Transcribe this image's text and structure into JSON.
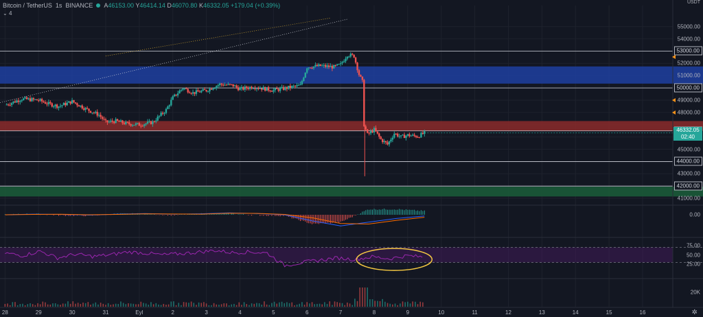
{
  "header": {
    "symbol": "Bitcoin / TetherUS",
    "interval": "1s",
    "exchange": "BINANCE",
    "o_label": "A",
    "o_value": "46153.00",
    "h_label": "Y",
    "h_value": "46414.14",
    "l_label": "D",
    "l_value": "46070.80",
    "c_label": "K",
    "c_value": "46332.05",
    "change": "+179.04 (+0.39%)",
    "indicators_count": "4"
  },
  "axis_unit": "USDT",
  "current_price": {
    "value": "46332.05",
    "countdown": "02:40"
  },
  "colors": {
    "background": "#131722",
    "up": "#26a69a",
    "down": "#ef5350",
    "blue_zone": "#1e3fa0",
    "red_zone": "#8b2a2a",
    "green_zone": "#1b5e3a",
    "rsi_line": "#9c27b0",
    "highlight": "#f5c842"
  },
  "chart_data": [
    {
      "type": "candlestick",
      "title": "Bitcoin / TetherUS",
      "x_ticks": [
        "28",
        "29",
        "30",
        "31",
        "Eyl",
        "2",
        "3",
        "4",
        "5",
        "6",
        "7",
        "8",
        "9",
        "10",
        "11",
        "12",
        "13",
        "14",
        "15",
        "16"
      ],
      "y_ticks": [
        "55000.00",
        "54000.00",
        "52000.00",
        "51000.00",
        "49000.00",
        "48000.00",
        "45000.00",
        "43000.00",
        "41000.00"
      ],
      "y_range": [
        40500,
        55600
      ],
      "labeled_levels": [
        "53000.00",
        "50000.00",
        "46500.00",
        "44000.00",
        "42000.00"
      ],
      "zones": [
        {
          "name": "blue",
          "from": 50350,
          "to": 51750
        },
        {
          "name": "red",
          "from": 46500,
          "to": 47300
        },
        {
          "name": "green",
          "from": 41150,
          "to": 41950
        }
      ],
      "close_path": [
        {
          "day": 28.0,
          "close": 48600
        },
        {
          "day": 28.5,
          "close": 49100
        },
        {
          "day": 29.0,
          "close": 49000
        },
        {
          "day": 29.3,
          "close": 48700
        },
        {
          "day": 29.6,
          "close": 48500
        },
        {
          "day": 30.0,
          "close": 48900
        },
        {
          "day": 30.4,
          "close": 48300
        },
        {
          "day": 30.8,
          "close": 47800
        },
        {
          "day": 31.0,
          "close": 47200
        },
        {
          "day": 31.3,
          "close": 47300
        },
        {
          "day": 31.6,
          "close": 47100
        },
        {
          "day": 32.0,
          "close": 47000
        },
        {
          "day": 32.4,
          "close": 47200
        },
        {
          "day": 32.8,
          "close": 48200
        },
        {
          "day": 33.0,
          "close": 49200
        },
        {
          "day": 33.3,
          "close": 50000
        },
        {
          "day": 33.6,
          "close": 49600
        },
        {
          "day": 34.0,
          "close": 49800
        },
        {
          "day": 34.4,
          "close": 50300
        },
        {
          "day": 34.8,
          "close": 50200
        },
        {
          "day": 35.0,
          "close": 49900
        },
        {
          "day": 35.4,
          "close": 50100
        },
        {
          "day": 35.8,
          "close": 49900
        },
        {
          "day": 36.0,
          "close": 49800
        },
        {
          "day": 36.4,
          "close": 50000
        },
        {
          "day": 36.8,
          "close": 50200
        },
        {
          "day": 37.0,
          "close": 51700
        },
        {
          "day": 37.4,
          "close": 51800
        },
        {
          "day": 37.8,
          "close": 51700
        },
        {
          "day": 38.0,
          "close": 51900
        },
        {
          "day": 38.2,
          "close": 52700
        },
        {
          "day": 38.4,
          "close": 52600
        },
        {
          "day": 38.55,
          "close": 51100
        },
        {
          "day": 38.65,
          "close": 50500
        },
        {
          "day": 38.7,
          "close": 47000
        },
        {
          "day": 38.8,
          "close": 46200
        },
        {
          "day": 39.0,
          "close": 46600
        },
        {
          "day": 39.2,
          "close": 45800
        },
        {
          "day": 39.4,
          "close": 45400
        },
        {
          "day": 39.6,
          "close": 46300
        },
        {
          "day": 39.8,
          "close": 46000
        },
        {
          "day": 40.0,
          "close": 46150
        },
        {
          "day": 40.3,
          "close": 46050
        },
        {
          "day": 40.5,
          "close": 46332
        }
      ]
    },
    {
      "type": "line",
      "title": "MACD",
      "y_ticks": [
        "0.00"
      ],
      "series": [
        {
          "values": [
            0,
            0.1,
            0.05,
            -0.05,
            0.1,
            0.2,
            0.1,
            0.15,
            0.3,
            0.2,
            0,
            -1.0,
            -1.8,
            -1.2,
            -0.6,
            -0.2
          ]
        },
        {
          "values": [
            0,
            0.05,
            0.08,
            0,
            0.05,
            0.15,
            0.12,
            0.1,
            0.25,
            0.22,
            0.05,
            -0.5,
            -1.4,
            -1.5,
            -0.9,
            -0.4
          ]
        }
      ]
    },
    {
      "type": "line",
      "title": "RSI",
      "y_ticks": [
        "75.00",
        "50.00",
        "25.00"
      ],
      "y_range": [
        0,
        100
      ],
      "series": [
        {
          "values": [
            55,
            48,
            60,
            42,
            52,
            46,
            50,
            58,
            55,
            50,
            53,
            57,
            62,
            56,
            58,
            55,
            22,
            30,
            36,
            42,
            38,
            45,
            40,
            48,
            44
          ]
        }
      ]
    },
    {
      "type": "bar",
      "title": "Volume",
      "y_ticks": [
        "20K"
      ]
    }
  ]
}
